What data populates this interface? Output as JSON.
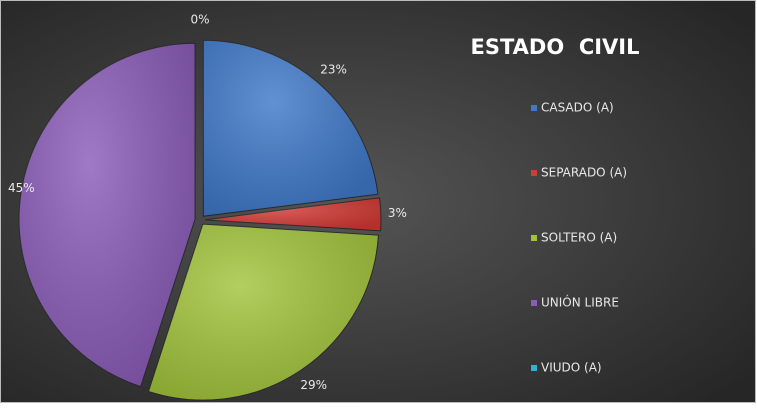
{
  "chart_data": {
    "type": "pie",
    "title": "ESTADO  CIVIL",
    "categories": [
      "CASADO (A)",
      "SEPARADO (A)",
      "SOLTERO (A)",
      "UNIÓN LIBRE",
      "VIUDO (A)"
    ],
    "values": [
      23,
      3,
      29,
      45,
      0
    ],
    "value_labels": [
      "23%",
      "3%",
      "29%",
      "45%",
      "0%"
    ],
    "colors": [
      "#3f79c9",
      "#d23a35",
      "#a2c43c",
      "#8a5cb8",
      "#2fb3d0"
    ],
    "legend": "right"
  }
}
